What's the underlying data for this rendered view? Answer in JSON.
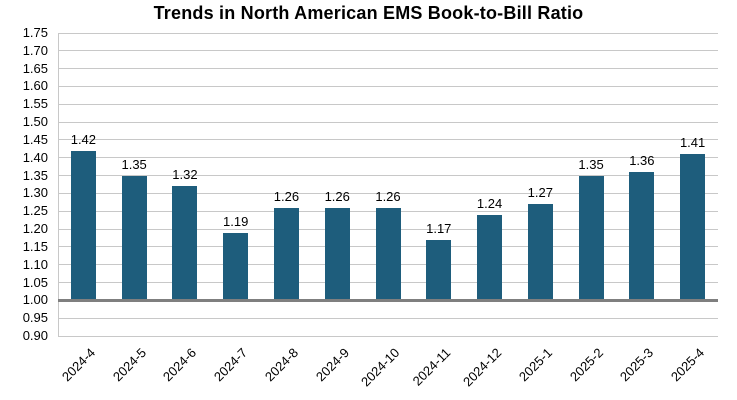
{
  "chart_data": {
    "type": "bar",
    "title": "Trends in North American EMS Book-to-Bill Ratio",
    "categories": [
      "2024-4",
      "2024-5",
      "2024-6",
      "2024-7",
      "2024-8",
      "2024-9",
      "2024-10",
      "2024-11",
      "2024-12",
      "2025-1",
      "2025-2",
      "2025-3",
      "2025-4"
    ],
    "values": [
      1.42,
      1.35,
      1.32,
      1.19,
      1.26,
      1.26,
      1.26,
      1.17,
      1.24,
      1.27,
      1.35,
      1.36,
      1.41
    ],
    "data_labels": [
      "1.42",
      "1.35",
      "1.32",
      "1.19",
      "1.26",
      "1.26",
      "1.26",
      "1.17",
      "1.24",
      "1.27",
      "1.35",
      "1.36",
      "1.41"
    ],
    "xlabel": "",
    "ylabel": "",
    "ylim": [
      0.9,
      1.75
    ],
    "ytick_step": 0.05,
    "baseline": 1.0,
    "grid": "horizontal",
    "legend_position": "none",
    "bar_color": "#1e5d7c",
    "gridline_color": "#c8c8c8",
    "baseline_color": "#7f7f7f",
    "text_color": "#000000"
  }
}
